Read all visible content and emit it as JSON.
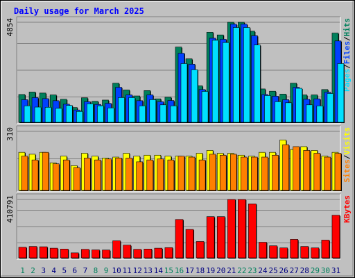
{
  "chart_data": {
    "type": "bar",
    "title": "Daily usage for March 2025",
    "x": [
      "1",
      "2",
      "3",
      "4",
      "5",
      "6",
      "7",
      "8",
      "9",
      "10",
      "11",
      "12",
      "13",
      "14",
      "15",
      "16",
      "17",
      "18",
      "19",
      "20",
      "21",
      "22",
      "23",
      "24",
      "25",
      "26",
      "27",
      "28",
      "29",
      "30",
      "31"
    ],
    "weekend_days": [
      "1",
      "2",
      "8",
      "9",
      "15",
      "16",
      "22",
      "23",
      "29",
      "30"
    ],
    "colors": {
      "hits": "#00805c",
      "files": "#0040ff",
      "pages": "#00e0ff",
      "visits": "#ffff00",
      "sites": "#ff8000",
      "kbytes": "#ff0000",
      "title": "#0000ff",
      "weekday_label": "#000080",
      "weekend_label": "#00805c",
      "plot_bg": "#c0c0c0",
      "grid": "#808080"
    },
    "panels": [
      {
        "id": "hits-panel",
        "ymax_label": "4854",
        "ymax": 4854,
        "legend": [
          {
            "text": "Pages",
            "color": "#00e0ff"
          },
          {
            "text": "/",
            "color": "#000000"
          },
          {
            "text": "Files",
            "color": "#0040ff"
          },
          {
            "text": "/",
            "color": "#000000"
          },
          {
            "text": "Hits",
            "color": "#00805c"
          }
        ],
        "series": [
          {
            "name": "Hits",
            "color": "#00805c",
            "values": [
              1350,
              1470,
              1420,
              1330,
              1120,
              720,
              1190,
              1020,
              1080,
              1900,
              1570,
              1280,
              1540,
              1140,
              1220,
              3650,
              3080,
              1770,
              4370,
              4240,
              4854,
              4854,
              4420,
              1620,
              1510,
              1370,
              1900,
              1330,
              1330,
              1590,
              4330
            ]
          },
          {
            "name": "Files",
            "color": "#0040ff",
            "values": [
              1100,
              1200,
              1150,
              1050,
              880,
              600,
              1000,
              870,
              920,
              1700,
              1330,
              1050,
              1330,
              1000,
              1060,
              3350,
              2820,
              1590,
              4080,
              4030,
              4760,
              4760,
              4200,
              1350,
              1270,
              1100,
              1700,
              1120,
              1140,
              1460,
              3950
            ]
          },
          {
            "name": "Pages",
            "color": "#00e0ff",
            "values": [
              800,
              740,
              730,
              680,
              820,
              530,
              900,
              800,
              700,
              1200,
              1200,
              800,
              1100,
              850,
              800,
              2850,
              2550,
              1500,
              3980,
              3870,
              4600,
              4600,
              3750,
              1300,
              1000,
              950,
              1650,
              850,
              800,
              1400,
              2850
            ]
          }
        ]
      },
      {
        "id": "visits-panel",
        "ymax_label": "310",
        "ymax": 310,
        "legend": [
          {
            "text": "Sites",
            "color": "#ff8000"
          },
          {
            "text": "/",
            "color": "#000000"
          },
          {
            "text": "Visits",
            "color": "#ffff00"
          }
        ],
        "series": [
          {
            "name": "Visits",
            "color": "#ffff00",
            "values": [
              200,
              190,
              200,
              145,
              180,
              130,
              195,
              180,
              170,
              175,
              195,
              180,
              185,
              185,
              180,
              180,
              180,
              195,
              210,
              195,
              195,
              185,
              180,
              200,
              200,
              265,
              215,
              230,
              210,
              180,
              200
            ]
          },
          {
            "name": "Sites",
            "color": "#ff8000",
            "values": [
              180,
              160,
              200,
              140,
              160,
              120,
              170,
              160,
              165,
              170,
              170,
              150,
              160,
              165,
              160,
              180,
              175,
              160,
              190,
              185,
              190,
              175,
              175,
              175,
              185,
              240,
              230,
              210,
              195,
              175,
              195
            ]
          }
        ]
      },
      {
        "id": "kbytes-panel",
        "ymax_label": "410791",
        "ymax": 410791,
        "legend": [
          {
            "text": "KBytes",
            "color": "#ff0000"
          }
        ],
        "series": [
          {
            "name": "KBytes",
            "color": "#ff0000",
            "values": [
              75000,
              80000,
              78000,
              68000,
              62000,
              35000,
              60000,
              56000,
              55000,
              120000,
              90000,
              60000,
              62000,
              68000,
              72000,
              270000,
              200000,
              115000,
              290000,
              290000,
              410791,
              410791,
              380000,
              110000,
              85000,
              70000,
              130000,
              80000,
              70000,
              125000,
              300000
            ]
          }
        ]
      }
    ]
  }
}
